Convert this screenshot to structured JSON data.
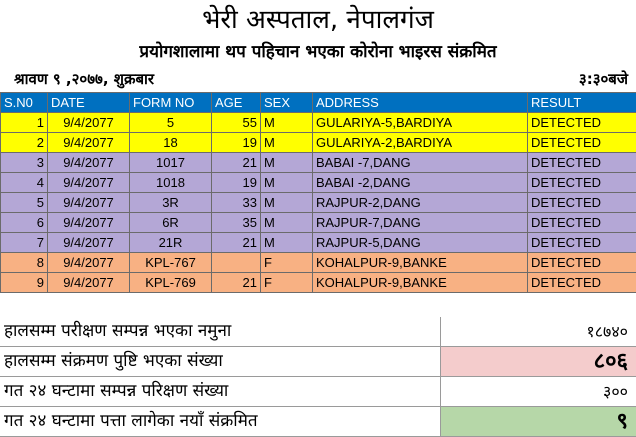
{
  "header": {
    "title": "भेरी अस्पताल, नेपालगंज",
    "subtitle": "प्रयोगशालामा थप पहिचान भएका कोरोना भाइरस संक्रमित",
    "date": "श्रावण ९ ,२०७७, शुक्रबार",
    "time": "३:३०बजे"
  },
  "table": {
    "columns": [
      "S.N0",
      "DATE",
      "FORM NO",
      "AGE",
      "SEX",
      "ADDRESS",
      "RESULT"
    ],
    "rows": [
      [
        "1",
        "9/4/2077",
        "5",
        "55",
        "M",
        "GULARIYA-5,BARDIYA",
        "DETECTED"
      ],
      [
        "2",
        "9/4/2077",
        "18",
        "19",
        "M",
        "GULARIYA-2,BARDIYA",
        "DETECTED"
      ],
      [
        "3",
        "9/4/2077",
        "1017",
        "21",
        "M",
        "BABAI -7,DANG",
        "DETECTED"
      ],
      [
        "4",
        "9/4/2077",
        "1018",
        "19",
        "M",
        "BABAI -2,DANG",
        "DETECTED"
      ],
      [
        "5",
        "9/4/2077",
        "3R",
        "33",
        "M",
        "RAJPUR-2,DANG",
        "DETECTED"
      ],
      [
        "6",
        "9/4/2077",
        "6R",
        "35",
        "M",
        "RAJPUR-7,DANG",
        "DETECTED"
      ],
      [
        "7",
        "9/4/2077",
        "21R",
        "21",
        "M",
        "RAJPUR-5,DANG",
        "DETECTED"
      ],
      [
        "8",
        "9/4/2077",
        "KPL-767",
        "",
        "F",
        "KOHALPUR-9,BANKE",
        "DETECTED"
      ],
      [
        "9",
        "9/4/2077",
        "KPL-769",
        "21",
        "F",
        "KOHALPUR-9,BANKE",
        "DETECTED"
      ]
    ],
    "row_colors": [
      "yellow",
      "yellow",
      "purple",
      "purple",
      "purple",
      "purple",
      "purple",
      "orange",
      "orange"
    ]
  },
  "summary": [
    {
      "label": "हालसम्म परीक्षण सम्पन्न भएका नमुना",
      "value": "१८७४०",
      "style": "plain"
    },
    {
      "label": "हालसम्म संक्रमण पुष्टि भएका संख्या",
      "value": "८०६",
      "style": "pink"
    },
    {
      "label": "गत २४ घन्टामा सम्पन्न परिक्षण संख्या",
      "value": "३००",
      "style": "plain"
    },
    {
      "label": "गत २४ घन्टामा पत्ता लागेका नयाँ संक्रमित",
      "value": "९",
      "style": "green"
    }
  ]
}
